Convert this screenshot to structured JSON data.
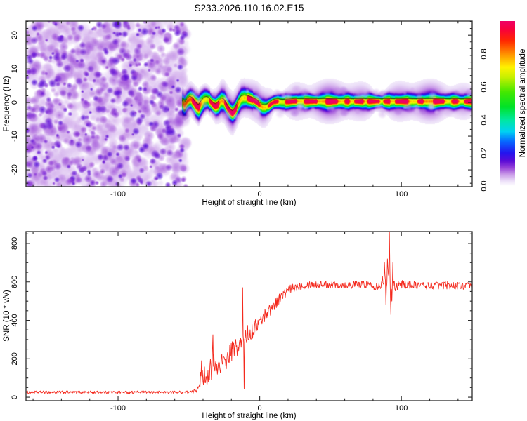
{
  "figure": {
    "title": "S233.2026.110.16.02.E15",
    "background": "#ffffff",
    "frame_color": "#2b2b2b",
    "text_color": "#000000"
  },
  "chart_data": [
    {
      "type": "heatmap",
      "panel": "spectrogram",
      "xlabel": "Height of straight line (km)",
      "ylabel": "Frequency (Hz)",
      "xlim": [
        -165,
        150
      ],
      "ylim": [
        -25,
        24.2
      ],
      "xticks": [
        {
          "v": -100,
          "label": "-100"
        },
        {
          "v": 0,
          "label": "0"
        },
        {
          "v": 100,
          "label": "100"
        }
      ],
      "xminor_step": 20,
      "yticks": [
        {
          "v": -20,
          "label": "-20"
        },
        {
          "v": -10,
          "label": "-10"
        },
        {
          "v": 0,
          "label": "0"
        },
        {
          "v": 10,
          "label": "10"
        },
        {
          "v": 20,
          "label": "20"
        }
      ],
      "yminor_step": 2,
      "grid": false,
      "colorbar": {
        "label": "Normalized spectral amplitude",
        "ticks": [
          {
            "v": 0.0,
            "label": "0.0"
          },
          {
            "v": 0.2,
            "label": "0.2"
          },
          {
            "v": 0.4,
            "label": "0.4"
          },
          {
            "v": 0.6,
            "label": "0.6"
          },
          {
            "v": 0.8,
            "label": "0.8"
          }
        ],
        "range": [
          0,
          1
        ],
        "stops": [
          {
            "v": 0.0,
            "c": "#ffffff"
          },
          {
            "v": 0.03,
            "c": "#ecdff8"
          },
          {
            "v": 0.07,
            "c": "#c99ae8"
          },
          {
            "v": 0.11,
            "c": "#9743d8"
          },
          {
            "v": 0.15,
            "c": "#5c0bd6"
          },
          {
            "v": 0.2,
            "c": "#2414ee"
          },
          {
            "v": 0.27,
            "c": "#0668ff"
          },
          {
            "v": 0.33,
            "c": "#00d2f2"
          },
          {
            "v": 0.4,
            "c": "#00e8a0"
          },
          {
            "v": 0.48,
            "c": "#00e228"
          },
          {
            "v": 0.57,
            "c": "#44e800"
          },
          {
            "v": 0.66,
            "c": "#c8f000"
          },
          {
            "v": 0.72,
            "c": "#fff200"
          },
          {
            "v": 0.8,
            "c": "#ff9000"
          },
          {
            "v": 0.88,
            "c": "#ff2800"
          },
          {
            "v": 0.95,
            "c": "#f8003c"
          },
          {
            "v": 1.0,
            "c": "#ee0066"
          }
        ]
      },
      "noise_region": {
        "x_start": -165,
        "x_end": -52,
        "amplitude_range": [
          0.02,
          0.16
        ]
      },
      "signal_band": {
        "x_start": -55,
        "x_end": 150,
        "core_amplitude": 0.97,
        "gap_amplitude": 0.66,
        "overlay_line_color": "#0a0a28",
        "centerline": [
          [
            -55,
            0.0
          ],
          [
            -53,
            -0.9
          ],
          [
            -51,
            0.4
          ],
          [
            -49,
            1.1
          ],
          [
            -47,
            0.4
          ],
          [
            -45,
            -0.8
          ],
          [
            -43,
            -1.5
          ],
          [
            -41,
            -0.2
          ],
          [
            -39,
            0.8
          ],
          [
            -37,
            1.0
          ],
          [
            -35,
            0.3
          ],
          [
            -33,
            -0.7
          ],
          [
            -31,
            -1.2
          ],
          [
            -29,
            -0.5
          ],
          [
            -27,
            0.5
          ],
          [
            -25,
            0.2
          ],
          [
            -23,
            -1.3
          ],
          [
            -21,
            -2.6
          ],
          [
            -19,
            -3.3
          ],
          [
            -17,
            -2.1
          ],
          [
            -15,
            -0.3
          ],
          [
            -13,
            1.1
          ],
          [
            -11,
            1.4
          ],
          [
            -8,
            1.2
          ],
          [
            -5,
            0.7
          ],
          [
            -2,
            0.1
          ],
          [
            0,
            -0.7
          ],
          [
            2,
            -1.4
          ],
          [
            4,
            -1.5
          ],
          [
            6,
            -1.1
          ],
          [
            8,
            -0.5
          ],
          [
            10,
            0.1
          ],
          [
            13,
            0.3
          ],
          [
            16,
            0.1
          ],
          [
            20,
            0.2
          ],
          [
            25,
            0.35
          ],
          [
            35,
            0.3
          ],
          [
            50,
            0.3
          ],
          [
            70,
            0.3
          ],
          [
            90,
            0.3
          ],
          [
            110,
            0.3
          ],
          [
            130,
            0.3
          ],
          [
            150,
            0.3
          ]
        ]
      }
    },
    {
      "type": "line",
      "panel": "snr",
      "xlabel": "Height of straight line (km)",
      "ylabel": "SNR (10 * v/v)",
      "xlim": [
        -165,
        150
      ],
      "ylim": [
        -18,
        862
      ],
      "xticks": [
        {
          "v": -100,
          "label": "-100"
        },
        {
          "v": 0,
          "label": "0"
        },
        {
          "v": 100,
          "label": "100"
        }
      ],
      "xminor_step": 20,
      "yticks": [
        {
          "v": 0,
          "label": "0"
        },
        {
          "v": 200,
          "label": "200"
        },
        {
          "v": 400,
          "label": "400"
        },
        {
          "v": 600,
          "label": "600"
        },
        {
          "v": 800,
          "label": "800"
        }
      ],
      "yminor_step": 50,
      "grid": false,
      "series": [
        {
          "name": "SNR",
          "color": "#f42a1e",
          "envelope": [
            [
              -165,
              26,
              7
            ],
            [
              -120,
              26,
              7
            ],
            [
              -80,
              26,
              7
            ],
            [
              -60,
              26,
              7
            ],
            [
              -47,
              27,
              8
            ],
            [
              -44,
              45,
              18
            ],
            [
              -43,
              85,
              40
            ],
            [
              -41,
              100,
              45
            ],
            [
              -39,
              115,
              50
            ],
            [
              -37,
              105,
              45
            ],
            [
              -35,
              140,
              60
            ],
            [
              -33,
              185,
              70
            ],
            [
              -31,
              150,
              55
            ],
            [
              -29,
              165,
              50
            ],
            [
              -27,
              185,
              50
            ],
            [
              -25,
              170,
              45
            ],
            [
              -23,
              200,
              50
            ],
            [
              -21,
              225,
              50
            ],
            [
              -19,
              245,
              50
            ],
            [
              -17,
              262,
              45
            ],
            [
              -15,
              255,
              45
            ],
            [
              -13,
              285,
              50
            ],
            [
              -11,
              300,
              55
            ],
            [
              -9,
              330,
              45
            ],
            [
              -7,
              330,
              40
            ],
            [
              -5,
              345,
              40
            ],
            [
              -3,
              365,
              40
            ],
            [
              -1,
              385,
              35
            ],
            [
              1,
              400,
              35
            ],
            [
              3,
              420,
              35
            ],
            [
              5,
              440,
              35
            ],
            [
              7,
              455,
              35
            ],
            [
              9,
              470,
              30
            ],
            [
              11,
              490,
              30
            ],
            [
              13,
              505,
              30
            ],
            [
              15,
              520,
              30
            ],
            [
              17,
              535,
              28
            ],
            [
              19,
              548,
              26
            ],
            [
              22,
              562,
              25
            ],
            [
              26,
              575,
              22
            ],
            [
              30,
              582,
              22
            ],
            [
              36,
              588,
              20
            ],
            [
              45,
              585,
              20
            ],
            [
              55,
              588,
              20
            ],
            [
              65,
              585,
              20
            ],
            [
              75,
              588,
              20
            ],
            [
              82,
              580,
              24
            ],
            [
              86,
              592,
              30
            ],
            [
              89,
              615,
              45
            ],
            [
              91,
              640,
              60
            ],
            [
              93,
              560,
              70
            ],
            [
              95,
              585,
              35
            ],
            [
              100,
              588,
              22
            ],
            [
              110,
              583,
              20
            ],
            [
              120,
              580,
              20
            ],
            [
              130,
              583,
              20
            ],
            [
              140,
              580,
              20
            ],
            [
              150,
              578,
              20
            ]
          ],
          "spikes": [
            [
              -42,
              55
            ],
            [
              -41,
              190
            ],
            [
              -34,
              90
            ],
            [
              -33,
              325
            ],
            [
              -12,
              570
            ],
            [
              -11,
              45
            ],
            [
              88,
              700
            ],
            [
              89,
              480
            ],
            [
              90,
              720
            ],
            [
              91.5,
              890
            ],
            [
              92.5,
              430
            ],
            [
              94,
              700
            ]
          ]
        }
      ]
    }
  ]
}
